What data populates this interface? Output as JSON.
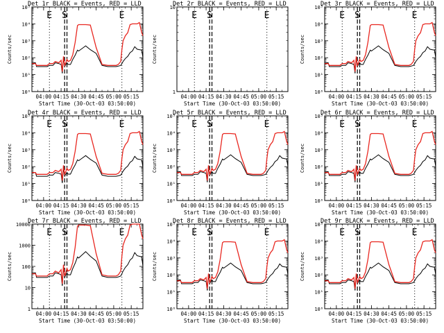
{
  "chart_data": [
    {
      "type": "line",
      "title": "Det 1r BLACK = Events, RED = LLD",
      "xlabel": "Start Time (30-Oct-03 03:50:00)",
      "ylabel": "Counts/sec",
      "y_log": true,
      "ylim": [
        1,
        100000
      ],
      "y_ticks": [
        {
          "v": 1,
          "label": "10⁰"
        },
        {
          "v": 10,
          "label": "10¹"
        },
        {
          "v": 100,
          "label": "10²"
        },
        {
          "v": 1000,
          "label": "10³"
        },
        {
          "v": 10000,
          "label": "10⁴"
        },
        {
          "v": 100000,
          "label": "10⁵"
        }
      ],
      "has_data": true,
      "black_scale": 1.0,
      "red_scale": 1.0
    },
    {
      "type": "line",
      "title": "Det 2r BLACK = Events, RED = LLD",
      "xlabel": "Start Time (30-Oct-03 03:50:00)",
      "ylabel": "Counts/sec",
      "y_log": true,
      "ylim": [
        1,
        10
      ],
      "y_ticks": [
        {
          "v": 1,
          "label": "1"
        },
        {
          "v": 10,
          "label": "10"
        }
      ],
      "has_data": false,
      "black_scale": 1.0,
      "red_scale": 1.0
    },
    {
      "type": "line",
      "title": "Det 3r BLACK = Events, RED = LLD",
      "xlabel": "Start Time (30-Oct-03 03:50:00)",
      "ylabel": "Counts/sec",
      "y_log": true,
      "ylim": [
        1,
        100000
      ],
      "y_ticks": [
        {
          "v": 1,
          "label": "10⁰"
        },
        {
          "v": 10,
          "label": "10¹"
        },
        {
          "v": 100,
          "label": "10²"
        },
        {
          "v": 1000,
          "label": "10³"
        },
        {
          "v": 10000,
          "label": "10⁴"
        },
        {
          "v": 100000,
          "label": "10⁵"
        }
      ],
      "has_data": true,
      "black_scale": 1.0,
      "red_scale": 1.0
    },
    {
      "type": "line",
      "title": "Det 4r BLACK = Events, RED = LLD",
      "xlabel": "Start Time (30-Oct-03 03:50:00)",
      "ylabel": "Counts/sec",
      "y_log": true,
      "ylim": [
        1,
        100000
      ],
      "y_ticks": [
        {
          "v": 1,
          "label": "10⁰"
        },
        {
          "v": 10,
          "label": "10¹"
        },
        {
          "v": 100,
          "label": "10²"
        },
        {
          "v": 1000,
          "label": "10³"
        },
        {
          "v": 10000,
          "label": "10⁴"
        },
        {
          "v": 100000,
          "label": "10⁵"
        }
      ],
      "has_data": true,
      "black_scale": 0.9,
      "red_scale": 1.0
    },
    {
      "type": "line",
      "title": "Det 5r BLACK = Events, RED = LLD",
      "xlabel": "Start Time (30-Oct-03 03:50:00)",
      "ylabel": "Counts/sec",
      "y_log": true,
      "ylim": [
        1,
        100000
      ],
      "y_ticks": [
        {
          "v": 1,
          "label": "10⁰"
        },
        {
          "v": 10,
          "label": "10¹"
        },
        {
          "v": 100,
          "label": "10²"
        },
        {
          "v": 1000,
          "label": "10³"
        },
        {
          "v": 10000,
          "label": "10⁴"
        },
        {
          "v": 100000,
          "label": "10⁵"
        }
      ],
      "has_data": true,
      "black_scale": 1.0,
      "red_scale": 1.0
    },
    {
      "type": "line",
      "title": "Det 6r BLACK = Events, RED = LLD",
      "xlabel": "Start Time (30-Oct-03 03:50:00)",
      "ylabel": "Counts/sec",
      "y_log": true,
      "ylim": [
        1,
        100000
      ],
      "y_ticks": [
        {
          "v": 1,
          "label": "10⁰"
        },
        {
          "v": 10,
          "label": "10¹"
        },
        {
          "v": 100,
          "label": "10²"
        },
        {
          "v": 1000,
          "label": "10³"
        },
        {
          "v": 10000,
          "label": "10⁴"
        },
        {
          "v": 100000,
          "label": "10⁵"
        }
      ],
      "has_data": true,
      "black_scale": 1.0,
      "red_scale": 1.0
    },
    {
      "type": "line",
      "title": "Det 7r BLACK = Events, RED = LLD",
      "xlabel": "Start Time (30-Oct-03 03:50:00)",
      "ylabel": "Counts/sec",
      "y_log": true,
      "ylim": [
        1,
        10000
      ],
      "y_ticks": [
        {
          "v": 1,
          "label": "1"
        },
        {
          "v": 10,
          "label": "10"
        },
        {
          "v": 100,
          "label": "100"
        },
        {
          "v": 1000,
          "label": "1000"
        },
        {
          "v": 10000,
          "label": "10000"
        }
      ],
      "has_data": true,
      "black_scale": 1.0,
      "red_scale": 1.0
    },
    {
      "type": "line",
      "title": "Det 8r BLACK = Events, RED = LLD",
      "xlabel": "Start Time (30-Oct-03 03:50:00)",
      "ylabel": "Counts/sec",
      "y_log": true,
      "ylim": [
        1,
        100000
      ],
      "y_ticks": [
        {
          "v": 1,
          "label": "10⁰"
        },
        {
          "v": 10,
          "label": "10¹"
        },
        {
          "v": 100,
          "label": "10²"
        },
        {
          "v": 1000,
          "label": "10³"
        },
        {
          "v": 10000,
          "label": "10⁴"
        },
        {
          "v": 100000,
          "label": "10⁵"
        }
      ],
      "has_data": true,
      "black_scale": 1.0,
      "red_scale": 1.0
    },
    {
      "type": "line",
      "title": "Det 9r BLACK = Events, RED = LLD",
      "xlabel": "Start Time (30-Oct-03 03:50:00)",
      "ylabel": "Counts/sec",
      "y_log": true,
      "ylim": [
        1,
        100000
      ],
      "y_ticks": [
        {
          "v": 1,
          "label": "10⁰"
        },
        {
          "v": 10,
          "label": "10¹"
        },
        {
          "v": 100,
          "label": "10²"
        },
        {
          "v": 1000,
          "label": "10³"
        },
        {
          "v": 10000,
          "label": "10⁴"
        },
        {
          "v": 100000,
          "label": "10⁵"
        }
      ],
      "has_data": true,
      "black_scale": 1.0,
      "red_scale": 1.0
    }
  ],
  "x_axis": {
    "xlim": [
      "03:50",
      "05:25"
    ],
    "ticks": [
      {
        "t": "04:00"
      },
      {
        "t": "04:15"
      },
      {
        "t": "04:30"
      },
      {
        "t": "04:45"
      },
      {
        "t": "05:00"
      },
      {
        "t": "05:15"
      }
    ]
  },
  "markers": [
    {
      "label": "E",
      "time": "04:05",
      "style": "dotted"
    },
    {
      "label": "S",
      "time": "04:18",
      "style": "dashed"
    },
    {
      "label": "",
      "time": "04:20",
      "style": "dashed"
    },
    {
      "label": "E",
      "time": "05:07",
      "style": "dotted"
    }
  ],
  "series_template": {
    "x": [
      "03:50",
      "03:53",
      "03:54",
      "04:03",
      "04:05",
      "04:08",
      "04:10",
      "04:13",
      "04:15",
      "04:16",
      "04:17",
      "04:18",
      "04:19",
      "04:20",
      "04:21",
      "04:23",
      "04:25",
      "04:27",
      "04:29",
      "04:30",
      "04:33",
      "04:36",
      "04:40",
      "04:45",
      "04:50",
      "04:55",
      "04:58",
      "05:00",
      "05:02",
      "05:04",
      "05:06",
      "05:07",
      "05:08",
      "05:10",
      "05:12",
      "05:14",
      "05:16",
      "05:18",
      "05:20",
      "05:22",
      "05:24",
      "05:25"
    ],
    "black_events": [
      50,
      50,
      30,
      30,
      35,
      35,
      50,
      45,
      40,
      12,
      90,
      30,
      40,
      50,
      40,
      40,
      80,
      140,
      280,
      250,
      350,
      500,
      300,
      180,
      35,
      30,
      30,
      30,
      30,
      32,
      35,
      45,
      60,
      90,
      120,
      200,
      250,
      450,
      320,
      300,
      280,
      100
    ],
    "red_lld": [
      45,
      45,
      35,
      35,
      45,
      45,
      60,
      50,
      70,
      15,
      120,
      35,
      50,
      80,
      60,
      70,
      150,
      800,
      8000,
      9000,
      9000,
      9000,
      8500,
      400,
      40,
      35,
      35,
      35,
      35,
      40,
      60,
      300,
      1000,
      2000,
      3000,
      9000,
      10000,
      10000,
      10000,
      12000,
      3000,
      2000
    ]
  },
  "colors": {
    "events": "#000000",
    "lld": "#e8261f",
    "axes": "#000000",
    "background": "#ffffff"
  }
}
